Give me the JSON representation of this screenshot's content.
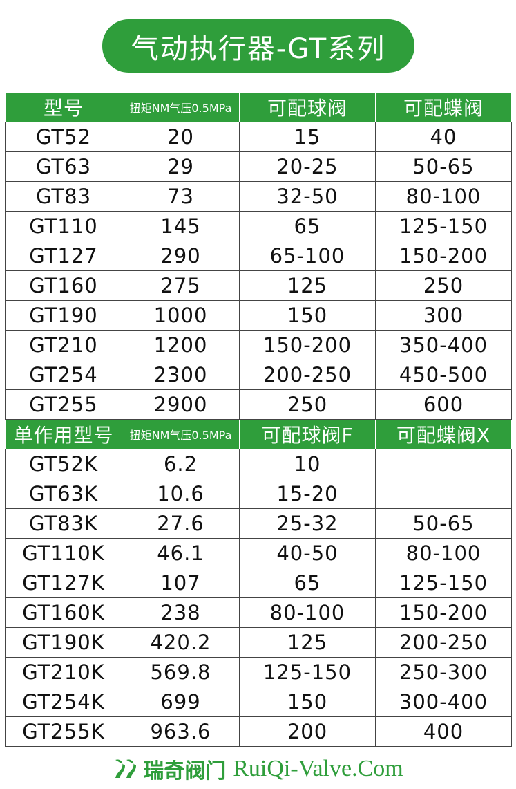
{
  "header": {
    "title": "气动执行器-GT系列"
  },
  "table": {
    "sections": [
      {
        "columns": [
          "型号",
          "扭矩NM气压0.5MPa",
          "可配球阀",
          "可配蝶阀"
        ],
        "rows": [
          [
            "GT52",
            "20",
            "15",
            "40"
          ],
          [
            "GT63",
            "29",
            "20-25",
            "50-65"
          ],
          [
            "GT83",
            "73",
            "32-50",
            "80-100"
          ],
          [
            "GT110",
            "145",
            "65",
            "125-150"
          ],
          [
            "GT127",
            "290",
            "65-100",
            "150-200"
          ],
          [
            "GT160",
            "275",
            "125",
            "250"
          ],
          [
            "GT190",
            "1000",
            "150",
            "300"
          ],
          [
            "GT210",
            "1200",
            "150-200",
            "350-400"
          ],
          [
            "GT254",
            "2300",
            "200-250",
            "450-500"
          ],
          [
            "GT255",
            "2900",
            "250",
            "600"
          ]
        ]
      },
      {
        "columns": [
          "单作用型号",
          "扭矩NM气压0.5MPa",
          "可配球阀F",
          "可配蝶阀X"
        ],
        "rows": [
          [
            "GT52K",
            "6.2",
            "10",
            null
          ],
          [
            "GT63K",
            "10.6",
            "15-20",
            null
          ],
          [
            "GT83K",
            "27.6",
            "25-32",
            "50-65"
          ],
          [
            "GT110K",
            "46.1",
            "40-50",
            "80-100"
          ],
          [
            "GT127K",
            "107",
            "65",
            "125-150"
          ],
          [
            "GT160K",
            "238",
            "80-100",
            "150-200"
          ],
          [
            "GT190K",
            "420.2",
            "125",
            "200-250"
          ],
          [
            "GT210K",
            "569.8",
            "125-150",
            "250-300"
          ],
          [
            "GT254K",
            "699",
            "150",
            "300-400"
          ],
          [
            "GT255K",
            "963.6",
            "200",
            "400"
          ]
        ]
      }
    ]
  },
  "footer": {
    "brand": "瑞奇阀门",
    "website": "RuiQi-Valve.Com"
  }
}
